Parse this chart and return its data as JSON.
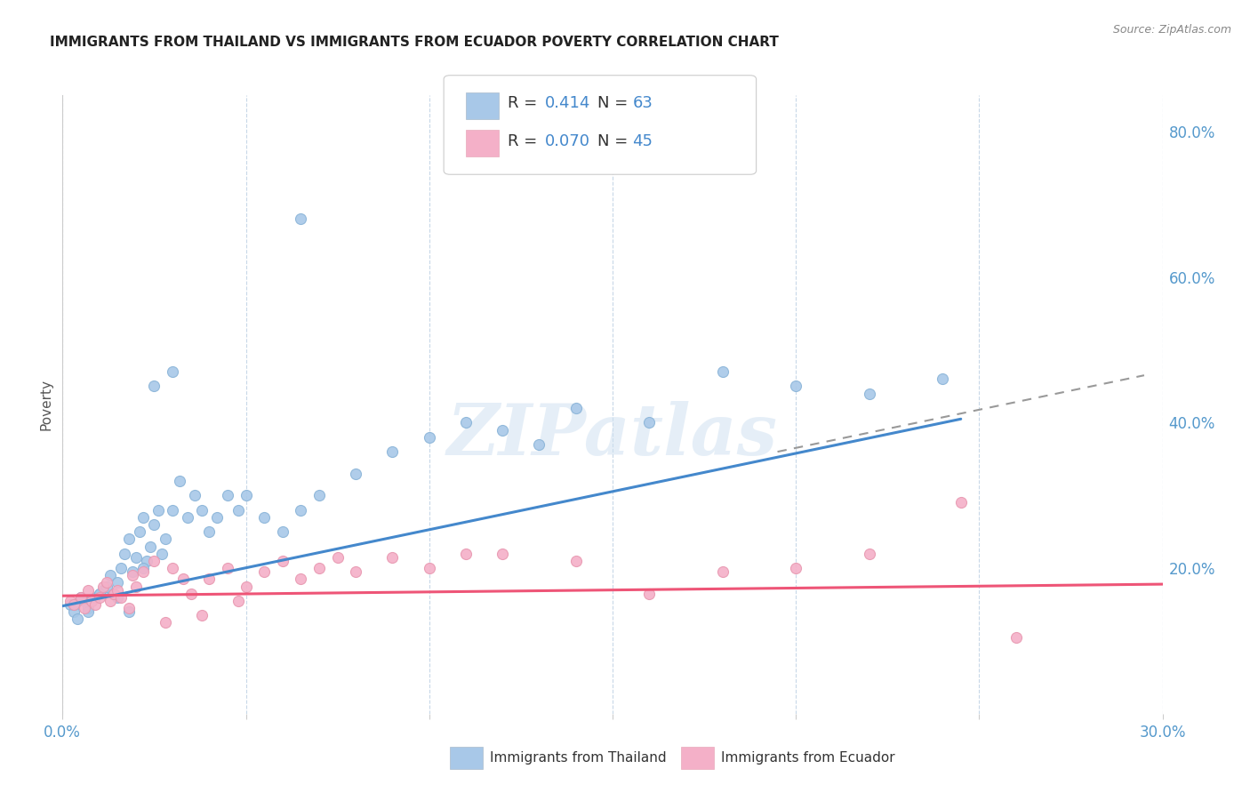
{
  "title": "IMMIGRANTS FROM THAILAND VS IMMIGRANTS FROM ECUADOR POVERTY CORRELATION CHART",
  "source": "Source: ZipAtlas.com",
  "ylabel": "Poverty",
  "xlim": [
    0.0,
    0.3
  ],
  "ylim": [
    0.0,
    0.85
  ],
  "xticks": [
    0.0,
    0.05,
    0.1,
    0.15,
    0.2,
    0.25,
    0.3
  ],
  "yticks_right": [
    0.0,
    0.2,
    0.4,
    0.6,
    0.8
  ],
  "ytick_right_labels": [
    "",
    "20.0%",
    "40.0%",
    "60.0%",
    "80.0%"
  ],
  "thailand_color": "#a8c8e8",
  "ecuador_color": "#f4b0c8",
  "background_color": "#ffffff",
  "grid_color": "#c8d8e8",
  "title_color": "#222222",
  "axis_tick_color": "#5599cc",
  "thailand_scatter_x": [
    0.002,
    0.003,
    0.004,
    0.005,
    0.006,
    0.007,
    0.008,
    0.009,
    0.01,
    0.011,
    0.012,
    0.013,
    0.014,
    0.015,
    0.016,
    0.017,
    0.018,
    0.019,
    0.02,
    0.021,
    0.022,
    0.023,
    0.024,
    0.025,
    0.026,
    0.027,
    0.028,
    0.03,
    0.032,
    0.034,
    0.036,
    0.038,
    0.04,
    0.042,
    0.045,
    0.048,
    0.05,
    0.055,
    0.06,
    0.065,
    0.07,
    0.08,
    0.09,
    0.1,
    0.11,
    0.12,
    0.13,
    0.14,
    0.16,
    0.18,
    0.2,
    0.22,
    0.24,
    0.003,
    0.005,
    0.007,
    0.01,
    0.015,
    0.018,
    0.022,
    0.025,
    0.03,
    0.065
  ],
  "thailand_scatter_y": [
    0.15,
    0.14,
    0.13,
    0.16,
    0.155,
    0.145,
    0.155,
    0.16,
    0.165,
    0.17,
    0.175,
    0.19,
    0.165,
    0.18,
    0.2,
    0.22,
    0.24,
    0.195,
    0.215,
    0.25,
    0.27,
    0.21,
    0.23,
    0.26,
    0.28,
    0.22,
    0.24,
    0.28,
    0.32,
    0.27,
    0.3,
    0.28,
    0.25,
    0.27,
    0.3,
    0.28,
    0.3,
    0.27,
    0.25,
    0.28,
    0.3,
    0.33,
    0.36,
    0.38,
    0.4,
    0.39,
    0.37,
    0.42,
    0.4,
    0.47,
    0.45,
    0.44,
    0.46,
    0.15,
    0.16,
    0.14,
    0.165,
    0.16,
    0.14,
    0.2,
    0.45,
    0.47,
    0.68
  ],
  "ecuador_scatter_x": [
    0.002,
    0.003,
    0.005,
    0.006,
    0.007,
    0.008,
    0.009,
    0.01,
    0.011,
    0.012,
    0.013,
    0.014,
    0.015,
    0.016,
    0.018,
    0.019,
    0.02,
    0.022,
    0.025,
    0.028,
    0.03,
    0.033,
    0.035,
    0.038,
    0.04,
    0.045,
    0.048,
    0.05,
    0.055,
    0.06,
    0.065,
    0.07,
    0.08,
    0.09,
    0.1,
    0.11,
    0.12,
    0.14,
    0.16,
    0.18,
    0.2,
    0.22,
    0.245,
    0.075,
    0.26
  ],
  "ecuador_scatter_y": [
    0.155,
    0.15,
    0.16,
    0.145,
    0.17,
    0.155,
    0.15,
    0.16,
    0.175,
    0.18,
    0.155,
    0.165,
    0.17,
    0.16,
    0.145,
    0.19,
    0.175,
    0.195,
    0.21,
    0.125,
    0.2,
    0.185,
    0.165,
    0.135,
    0.185,
    0.2,
    0.155,
    0.175,
    0.195,
    0.21,
    0.185,
    0.2,
    0.195,
    0.215,
    0.2,
    0.22,
    0.22,
    0.21,
    0.165,
    0.195,
    0.2,
    0.22,
    0.29,
    0.215,
    0.105
  ],
  "thailand_trend_x": [
    0.0,
    0.245
  ],
  "thailand_trend_y": [
    0.148,
    0.405
  ],
  "ecuador_trend_x": [
    0.0,
    0.3
  ],
  "ecuador_trend_y": [
    0.162,
    0.178
  ],
  "dashed_trend_x": [
    0.195,
    0.295
  ],
  "dashed_trend_y": [
    0.36,
    0.465
  ],
  "legend_R1_label": "R = ",
  "legend_R1_val": "0.414",
  "legend_N1_label": "  N = ",
  "legend_N1_val": "63",
  "legend_R2_label": "R = ",
  "legend_R2_val": "0.070",
  "legend_N2_label": "  N = ",
  "legend_N2_val": "45",
  "watermark_text": "ZIPatlas",
  "bottom_legend_label1": "Immigrants from Thailand",
  "bottom_legend_label2": "Immigrants from Ecuador"
}
